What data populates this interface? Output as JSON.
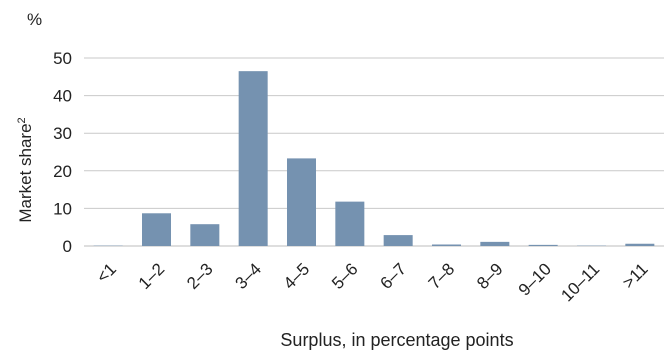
{
  "chart_data": {
    "type": "bar",
    "unit": "%",
    "ylabel": "Market share",
    "ylabel_sup": "2",
    "xlabel": "Surplus, in percentage points",
    "categories": [
      "<1",
      "1–2",
      "2–3",
      "3–4",
      "4–5",
      "5–6",
      "6–7",
      "7–8",
      "8–9",
      "9–10",
      "10–11",
      ">11"
    ],
    "values": [
      0.1,
      8.7,
      5.8,
      46.5,
      23.3,
      11.8,
      2.9,
      0.4,
      1.1,
      0.3,
      0.1,
      0.6
    ],
    "yticks": [
      0,
      10,
      20,
      30,
      40,
      50
    ],
    "ylim": [
      0,
      50
    ],
    "grid": true,
    "bar_color": "#7592b0"
  }
}
